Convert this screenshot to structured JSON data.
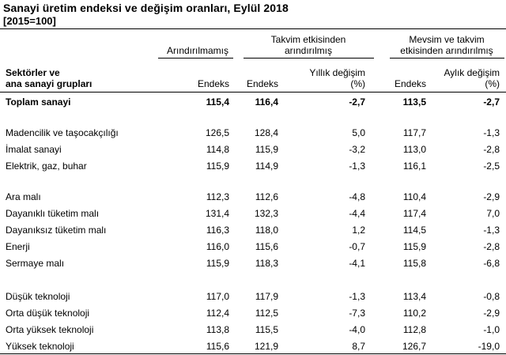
{
  "title": "Sanayi üretim endeksi ve değişim oranları, Eylül 2018",
  "subtitle": "[2015=100]",
  "header": {
    "group1": "Arındırılmamış",
    "group2_line1": "Takvim etkisinden",
    "group2_line2": "arındırılmış",
    "group3_line1": "Mevsim ve takvim",
    "group3_line2": "etkisinden arındırılmış",
    "row_label_line1": "Sektörler ve",
    "row_label_line2": "ana sanayi grupları",
    "col1": "Endeks",
    "col2": "Endeks",
    "col3_line1": "Yıllık değişim",
    "col3_line2": "(%)",
    "col4": "Endeks",
    "col5_line1": "Aylık değişim",
    "col5_line2": "(%)"
  },
  "rows": [
    {
      "name": "Toplam sanayi",
      "c1": "115,4",
      "c2": "116,4",
      "c3": "-2,7",
      "c4": "113,5",
      "c5": "-2,7"
    },
    {
      "name": "Madencilik ve taşocakçılığı",
      "c1": "126,5",
      "c2": "128,4",
      "c3": "5,0",
      "c4": "117,7",
      "c5": "-1,3"
    },
    {
      "name": "İmalat sanayi",
      "c1": "114,8",
      "c2": "115,9",
      "c3": "-3,2",
      "c4": "113,0",
      "c5": "-2,8"
    },
    {
      "name": "Elektrik, gaz, buhar",
      "c1": "115,9",
      "c2": "114,9",
      "c3": "-1,3",
      "c4": "116,1",
      "c5": "-2,5"
    },
    {
      "name": "Ara malı",
      "c1": "112,3",
      "c2": "112,6",
      "c3": "-4,8",
      "c4": "110,4",
      "c5": "-2,9"
    },
    {
      "name": "Dayanıklı tüketim malı",
      "c1": "131,4",
      "c2": "132,3",
      "c3": "-4,4",
      "c4": "117,4",
      "c5": "7,0"
    },
    {
      "name": "Dayanıksız tüketim malı",
      "c1": "116,3",
      "c2": "118,0",
      "c3": "1,2",
      "c4": "114,5",
      "c5": "-1,3"
    },
    {
      "name": "Enerji",
      "c1": "116,0",
      "c2": "115,6",
      "c3": "-0,7",
      "c4": "115,9",
      "c5": "-2,8"
    },
    {
      "name": "Sermaye malı",
      "c1": "115,9",
      "c2": "118,3",
      "c3": "-4,1",
      "c4": "115,8",
      "c5": "-6,8"
    },
    {
      "name": "Düşük teknoloji",
      "c1": "117,0",
      "c2": "117,9",
      "c3": "-1,3",
      "c4": "113,4",
      "c5": "-0,8"
    },
    {
      "name": "Orta düşük teknoloji",
      "c1": "112,4",
      "c2": "112,5",
      "c3": "-7,3",
      "c4": "110,2",
      "c5": "-2,9"
    },
    {
      "name": "Orta yüksek teknoloji",
      "c1": "113,8",
      "c2": "115,5",
      "c3": "-4,0",
      "c4": "112,8",
      "c5": "-1,0"
    },
    {
      "name": "Yüksek teknoloji",
      "c1": "115,6",
      "c2": "121,9",
      "c3": "8,7",
      "c4": "126,7",
      "c5": "-19,0"
    }
  ]
}
